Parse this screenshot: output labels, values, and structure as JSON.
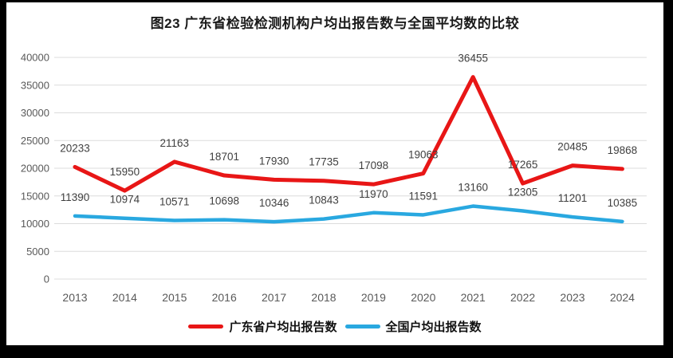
{
  "chart_data": {
    "type": "line",
    "title": "图23  广东省检验检测机构户均出报告数与全国平均数的比较",
    "categories": [
      "2013",
      "2014",
      "2015",
      "2016",
      "2017",
      "2018",
      "2019",
      "2020",
      "2021",
      "2022",
      "2023",
      "2024"
    ],
    "series": [
      {
        "key": "guangdong",
        "name": "广东省户均出报告数",
        "color": "#e81616",
        "line_width": 5,
        "values": [
          20233,
          15950,
          21163,
          18701,
          17930,
          17735,
          17098,
          19063,
          36455,
          17265,
          20485,
          19868
        ]
      },
      {
        "key": "national",
        "name": "全国户均出报告数",
        "color": "#29a8e0",
        "line_width": 4.5,
        "values": [
          11390,
          10974,
          10571,
          10698,
          10346,
          10843,
          11970,
          11591,
          13160,
          12305,
          11201,
          10385
        ]
      }
    ],
    "xlabel": "",
    "ylabel": "",
    "ylim": [
      0,
      40000
    ],
    "ytick_step": 5000,
    "yticks": [
      0,
      5000,
      10000,
      15000,
      20000,
      25000,
      30000,
      35000,
      40000
    ],
    "grid": "horizontal",
    "legend_position": "bottom",
    "data_labels": true
  },
  "colors": {
    "frame_bg": "#000000",
    "canvas_bg": "#ffffff",
    "grid": "#dcdcdc",
    "tick_text": "#595959",
    "data_label_text": "#3f3f3f",
    "title_text": "#1a1a1a",
    "legend_text": "#111111"
  }
}
